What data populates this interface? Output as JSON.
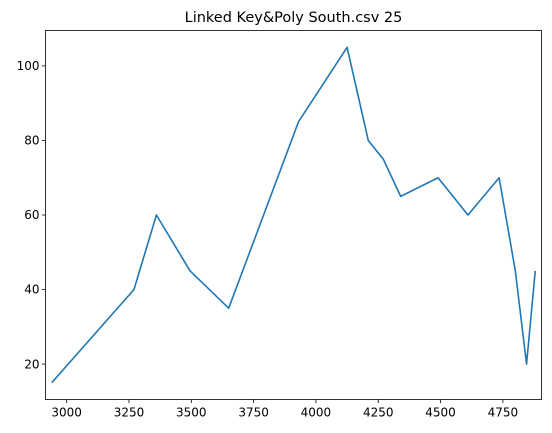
{
  "chart_data": {
    "type": "line",
    "title": "Linked Key&Poly South.csv 25",
    "xlabel": "",
    "ylabel": "",
    "xlim": [
      2915,
      4905
    ],
    "ylim": [
      10.5,
      109.5
    ],
    "xticks": [
      3000,
      3250,
      3500,
      3750,
      4000,
      4250,
      4500,
      4750
    ],
    "yticks": [
      20,
      40,
      60,
      80,
      100
    ],
    "grid": false,
    "series": [
      {
        "color": "#1f77b4",
        "x": [
          2940,
          3270,
          3360,
          3495,
          3650,
          3930,
          4125,
          4210,
          4270,
          4340,
          4490,
          4610,
          4735,
          4800,
          4845,
          4880
        ],
        "y": [
          15,
          40,
          60,
          45,
          35,
          85,
          105,
          80,
          75,
          65,
          70,
          60,
          70,
          45,
          20,
          45
        ]
      }
    ]
  }
}
